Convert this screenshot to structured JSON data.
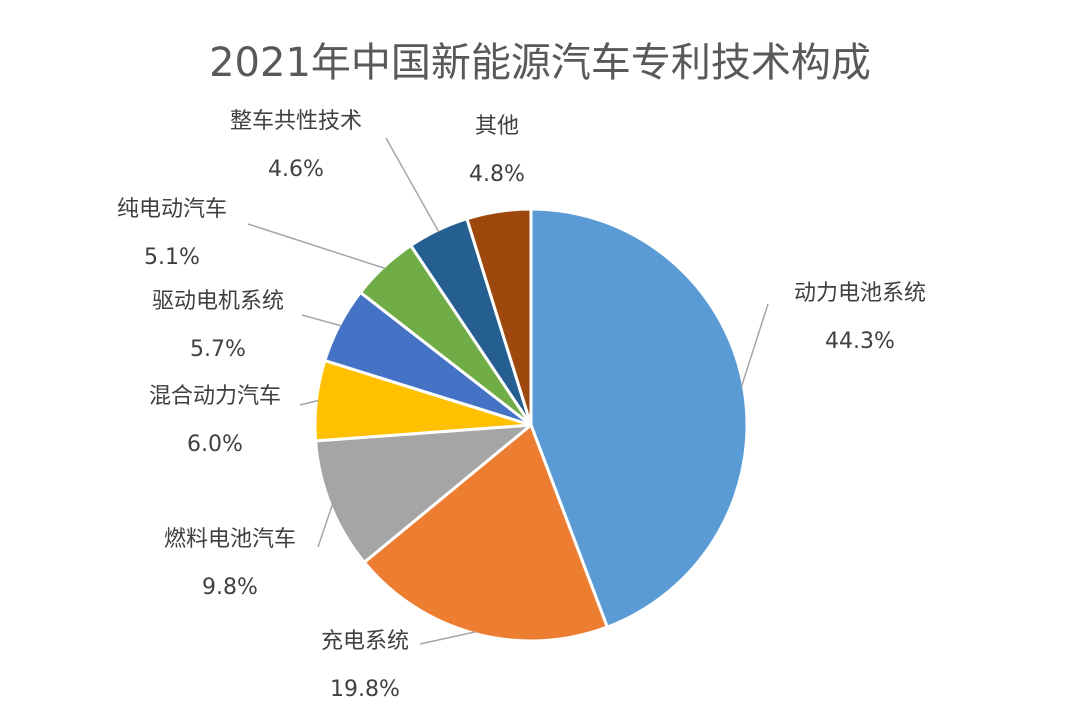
{
  "chart_data": {
    "type": "pie",
    "title": "2021年中国新能源汽车专利技术构成",
    "categories": [
      "动力电池系统",
      "充电系统",
      "燃料电池汽车",
      "混合动力汽车",
      "驱动电机系统",
      "纯电动汽车",
      "整车共性技术",
      "其他"
    ],
    "values": [
      44.3,
      19.8,
      9.8,
      6.0,
      5.7,
      5.1,
      4.6,
      4.8
    ],
    "value_labels": [
      "44.3%",
      "19.8%",
      "9.8%",
      "6.0%",
      "5.7%",
      "5.1%",
      "4.6%",
      "4.8%"
    ],
    "colors": [
      "#5b9bd5",
      "#ed7d31",
      "#a5a5a5",
      "#ffc000",
      "#4472c4",
      "#70ad47",
      "#255e91",
      "#9e480e"
    ],
    "start_angle": "12 o'clock",
    "direction": "clockwise",
    "legend": "none"
  }
}
